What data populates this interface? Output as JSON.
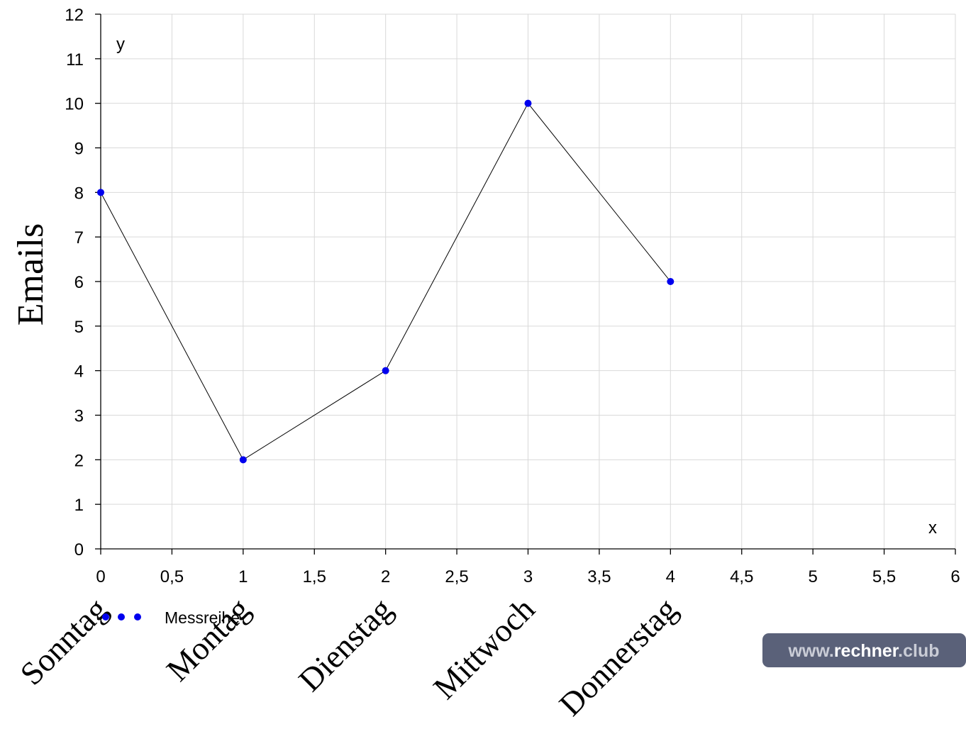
{
  "chart_data": {
    "type": "line",
    "x": [
      0,
      1,
      2,
      3,
      4
    ],
    "series": [
      {
        "name": "Messreihe",
        "values": [
          8,
          2,
          4,
          10,
          6
        ]
      }
    ],
    "categories": [
      "Sonntag",
      "Montag",
      "Dienstag",
      "Mittwoch",
      "Donnerstag"
    ],
    "xlim": [
      0,
      6
    ],
    "ylim": [
      0,
      12
    ],
    "xticks": [
      "0",
      "0,5",
      "1",
      "1,5",
      "2",
      "2,5",
      "3",
      "3,5",
      "4",
      "4,5",
      "5",
      "5,5",
      "6"
    ],
    "yticks": [
      "0",
      "1",
      "2",
      "3",
      "4",
      "5",
      "6",
      "7",
      "8",
      "9",
      "10",
      "11",
      "12"
    ],
    "x_axis_name": "x",
    "y_axis_name": "y",
    "ylabel": "Emails",
    "grid": true,
    "legend_position": "bottom-left",
    "colors": {
      "marker": "#0000ee",
      "line": "#000000",
      "grid": "#d9d9d9"
    }
  },
  "watermark": {
    "prefix": "www.",
    "brand": "rechner",
    "suffix": ".club",
    "background": "#5a6179",
    "prefix_color": "#c9ccd6",
    "brand_color": "#ffffff"
  }
}
